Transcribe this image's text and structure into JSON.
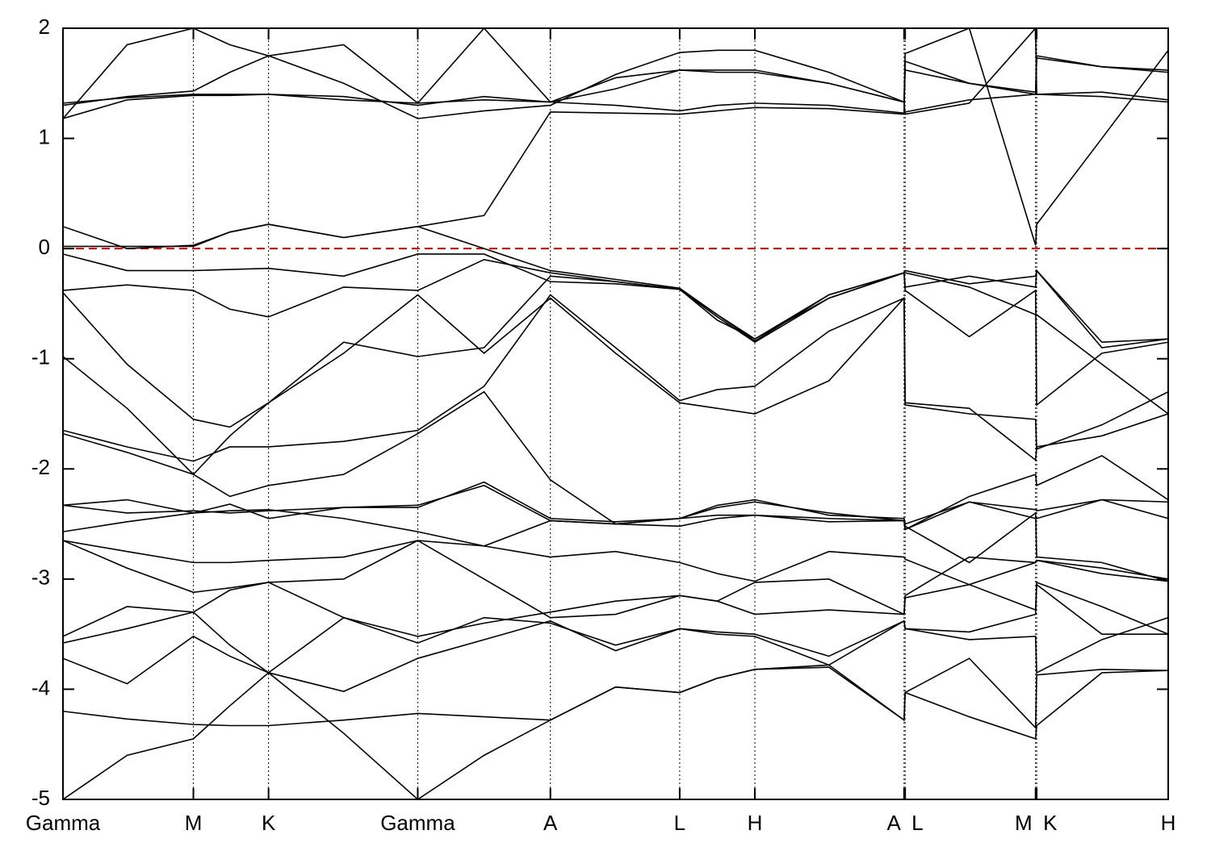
{
  "chart_data": {
    "type": "line",
    "x": [
      0,
      0.058,
      0.118,
      0.151,
      0.186,
      0.254,
      0.321,
      0.381,
      0.441,
      0.5,
      0.558,
      0.592,
      0.626,
      0.693,
      0.761,
      0.762,
      0.82,
      0.88,
      0.881,
      0.94,
      1
    ],
    "xlim": [
      0,
      1
    ],
    "xticks": [
      {
        "value": 0,
        "label": "Gamma"
      },
      {
        "value": 0.118,
        "label": "M"
      },
      {
        "value": 0.186,
        "label": "K"
      },
      {
        "value": 0.321,
        "label": "Gamma"
      },
      {
        "value": 0.441,
        "label": "A"
      },
      {
        "value": 0.558,
        "label": "L"
      },
      {
        "value": 0.626,
        "label": "H"
      },
      {
        "value": 0.761,
        "label": "A"
      },
      {
        "value": 0.762,
        "label": "L"
      },
      {
        "value": 0.88,
        "label": "M"
      },
      {
        "value": 0.881,
        "label": "K"
      },
      {
        "value": 1,
        "label": "H"
      }
    ],
    "ylim": [
      -5,
      2
    ],
    "yticks": [
      -5,
      -4,
      -3,
      -2,
      -1,
      0,
      1,
      2
    ],
    "x_grid": true,
    "color": "#000000",
    "hline": {
      "y": 0,
      "color": "#e00000",
      "dashed": true
    },
    "series": [
      {
        "values": [
          -5.0,
          -4.6,
          -4.45,
          -4.15,
          -3.85,
          -4.4,
          -5.0,
          -4.6,
          -4.28,
          -3.98,
          -4.03,
          -3.9,
          -3.82,
          -3.8,
          -4.28,
          -4.03,
          -4.25,
          -4.45,
          -4.33,
          -3.85,
          -3.83
        ]
      },
      {
        "values": [
          -4.2,
          -4.27,
          -4.32,
          -4.33,
          -4.33,
          -4.28,
          -4.22,
          -4.25,
          -4.28,
          -3.98,
          -4.03,
          -3.9,
          -3.82,
          -3.78,
          -4.28,
          -4.03,
          -3.72,
          -4.35,
          -3.87,
          -3.82,
          -3.83
        ]
      },
      {
        "values": [
          -3.72,
          -3.95,
          -3.52,
          -3.7,
          -3.85,
          -4.02,
          -3.72,
          -3.55,
          -3.38,
          -3.65,
          -3.45,
          -3.5,
          -3.52,
          -3.78,
          -3.38,
          -3.45,
          -3.55,
          -3.52,
          -3.85,
          -3.55,
          -3.35
        ]
      },
      {
        "values": [
          -3.58,
          -3.45,
          -3.3,
          -3.6,
          -3.85,
          -3.35,
          -3.58,
          -3.35,
          -3.4,
          -3.6,
          -3.45,
          -3.48,
          -3.5,
          -3.7,
          -3.38,
          -3.45,
          -3.48,
          -3.32,
          -3.05,
          -3.5,
          -3.5
        ]
      },
      {
        "values": [
          -3.52,
          -3.25,
          -3.3,
          -3.1,
          -3.03,
          -3.35,
          -3.52,
          -3.4,
          -3.3,
          -3.2,
          -3.15,
          -3.2,
          -3.32,
          -3.28,
          -3.32,
          -3.17,
          -3.05,
          -3.28,
          -3.03,
          -3.25,
          -3.5
        ]
      },
      {
        "values": [
          -2.65,
          -2.9,
          -3.12,
          -3.08,
          -3.03,
          -3.0,
          -2.65,
          -2.7,
          -2.8,
          -2.75,
          -2.85,
          -2.95,
          -3.02,
          -2.75,
          -2.8,
          -2.82,
          -3.05,
          -2.85,
          -2.83,
          -2.95,
          -3.02
        ]
      },
      {
        "values": [
          -2.65,
          -2.75,
          -2.85,
          -2.85,
          -2.83,
          -2.8,
          -2.65,
          -3.0,
          -3.35,
          -3.32,
          -3.15,
          -3.2,
          -3.03,
          -3.0,
          -3.32,
          -3.15,
          -2.8,
          -2.85,
          -2.83,
          -2.9,
          -3.0
        ]
      },
      {
        "values": [
          -2.57,
          -2.48,
          -2.4,
          -2.38,
          -2.37,
          -2.45,
          -2.57,
          -2.7,
          -2.47,
          -2.5,
          -2.52,
          -2.45,
          -2.42,
          -2.48,
          -2.47,
          -2.52,
          -2.85,
          -2.4,
          -2.8,
          -2.85,
          -3.02
        ]
      },
      {
        "values": [
          -2.33,
          -2.4,
          -2.38,
          -2.4,
          -2.38,
          -2.35,
          -2.33,
          -2.15,
          -2.47,
          -2.5,
          -2.45,
          -2.35,
          -2.3,
          -2.4,
          -2.47,
          -2.55,
          -2.3,
          -2.45,
          -2.45,
          -2.28,
          -2.3
        ]
      },
      {
        "values": [
          -2.33,
          -2.28,
          -2.4,
          -2.32,
          -2.45,
          -2.35,
          -2.35,
          -2.12,
          -2.45,
          -2.48,
          -2.45,
          -2.33,
          -2.28,
          -2.42,
          -2.45,
          -2.5,
          -2.3,
          -2.37,
          -2.38,
          -2.28,
          -2.45
        ]
      },
      {
        "values": [
          -1.68,
          -1.85,
          -2.05,
          -2.25,
          -2.15,
          -2.05,
          -1.68,
          -1.3,
          -2.1,
          -2.5,
          -2.45,
          -2.42,
          -2.42,
          -2.45,
          -2.47,
          -2.55,
          -2.25,
          -2.05,
          -2.15,
          -1.88,
          -2.28
        ]
      },
      {
        "values": [
          -1.65,
          -1.8,
          -1.93,
          -1.8,
          -1.8,
          -1.75,
          -1.65,
          -1.25,
          -0.42,
          -0.9,
          -1.38,
          -1.28,
          -1.25,
          -0.75,
          -0.45,
          -1.4,
          -1.45,
          -1.92,
          -1.8,
          -1.7,
          -1.5
        ]
      },
      {
        "values": [
          -0.98,
          -1.45,
          -2.05,
          -1.7,
          -1.4,
          -0.95,
          -0.42,
          -0.95,
          -0.45,
          -0.95,
          -1.4,
          -1.45,
          -1.5,
          -1.2,
          -0.45,
          -1.42,
          -1.5,
          -1.55,
          -1.82,
          -1.6,
          -1.3
        ]
      },
      {
        "values": [
          -0.4,
          -1.05,
          -1.55,
          -1.62,
          -1.4,
          -0.85,
          -0.98,
          -0.9,
          -0.25,
          -0.3,
          -0.37,
          -0.65,
          -0.82,
          -0.45,
          -0.22,
          -0.38,
          -0.8,
          -0.38,
          -1.42,
          -0.95,
          -0.85
        ]
      },
      {
        "values": [
          -0.38,
          -0.33,
          -0.38,
          -0.55,
          -0.62,
          -0.35,
          -0.38,
          -0.1,
          -0.22,
          -0.3,
          -0.37,
          -0.62,
          -0.85,
          -0.45,
          -0.22,
          -0.22,
          -0.35,
          -0.6,
          -0.6,
          -1.05,
          -1.5
        ]
      },
      {
        "values": [
          -0.05,
          -0.2,
          -0.2,
          -0.19,
          -0.18,
          -0.25,
          -0.05,
          -0.05,
          -0.3,
          -0.32,
          -0.37,
          -0.6,
          -0.84,
          -0.42,
          -0.22,
          -0.2,
          -0.32,
          -0.25,
          -0.2,
          -0.9,
          -0.82
        ]
      },
      {
        "values": [
          0.02,
          0.02,
          0.02,
          0.15,
          0.22,
          0.1,
          0.2,
          0.3,
          1.24,
          1.23,
          1.22,
          1.25,
          1.28,
          1.27,
          1.22,
          1.24,
          1.35,
          1.4,
          1.4,
          1.38,
          1.33
        ]
      },
      {
        "values": [
          0.2,
          0.0,
          0.03,
          0.15,
          0.22,
          0.1,
          0.2,
          0.0,
          -0.2,
          -0.28,
          -0.36,
          -0.6,
          -0.82,
          -0.42,
          -0.22,
          -0.35,
          -0.25,
          -0.35,
          -0.2,
          -0.85,
          -0.82
        ]
      },
      {
        "values": [
          1.18,
          1.35,
          1.39,
          1.39,
          1.4,
          1.38,
          1.3,
          1.38,
          1.33,
          1.3,
          1.25,
          1.3,
          1.32,
          1.3,
          1.23,
          1.7,
          1.5,
          1.42,
          1.75,
          1.65,
          1.6
        ]
      },
      {
        "values": [
          1.32,
          1.37,
          1.4,
          1.4,
          1.4,
          1.35,
          1.32,
          1.35,
          1.33,
          1.55,
          1.62,
          1.62,
          1.62,
          1.5,
          1.33,
          1.62,
          1.5,
          1.4,
          1.73,
          1.65,
          1.62
        ]
      },
      {
        "values": [
          1.3,
          1.38,
          1.43,
          1.6,
          1.75,
          1.5,
          1.18,
          1.25,
          1.3,
          1.58,
          1.78,
          1.8,
          1.8,
          1.6,
          1.33,
          1.77,
          2.0,
          0.03,
          0.22,
          1.0,
          1.8
        ]
      },
      {
        "values": [
          1.18,
          1.85,
          2.0,
          1.85,
          1.75,
          1.85,
          1.32,
          2.0,
          1.33,
          1.45,
          1.62,
          1.6,
          1.6,
          1.5,
          1.33,
          1.22,
          1.32,
          2.0,
          1.4,
          1.42,
          1.35
        ]
      }
    ]
  }
}
